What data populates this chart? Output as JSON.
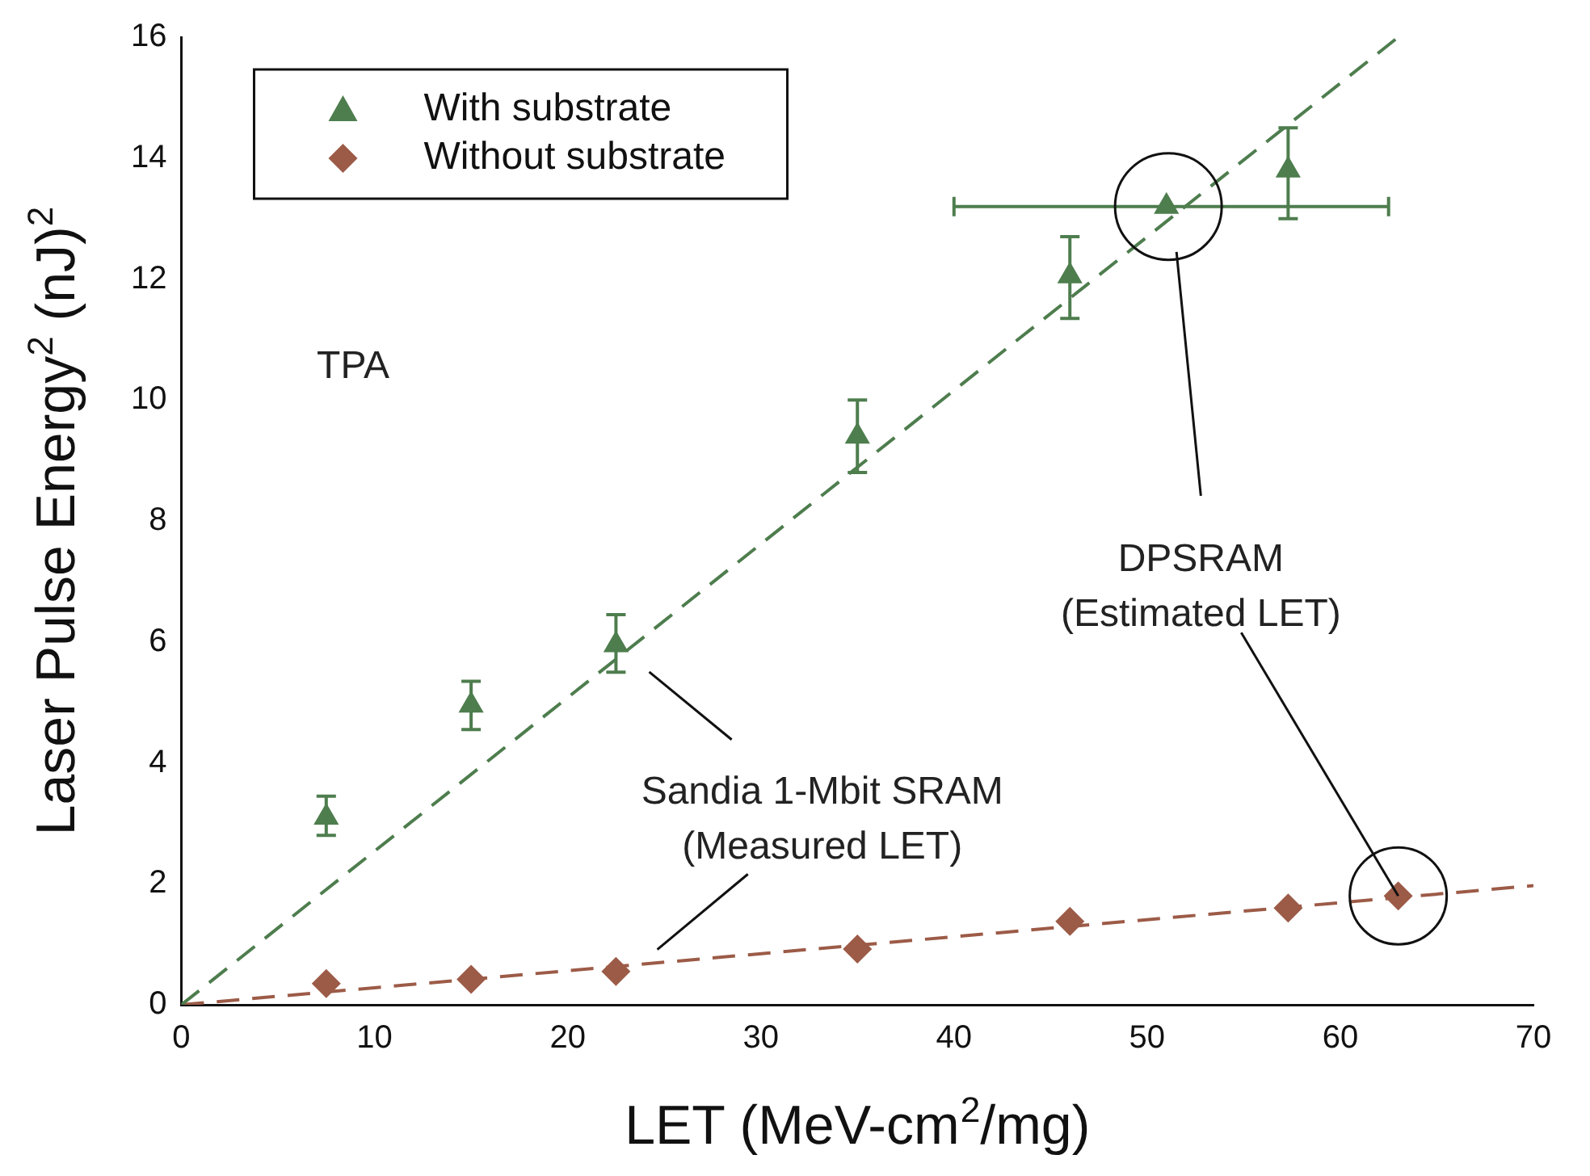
{
  "chart_data": {
    "type": "scatter",
    "xlabel": "LET (MeV-cm$^{2}$/mg)",
    "ylabel": "Laser Pulse Energy$^{2}$ (nJ)$^{2}$",
    "xlim": [
      0,
      70
    ],
    "xticks": [
      0,
      10,
      20,
      30,
      40,
      50,
      60,
      70
    ],
    "ylim": [
      0,
      16
    ],
    "yticks": [
      0,
      2,
      4,
      6,
      8,
      10,
      12,
      14,
      16
    ],
    "legend": "top left",
    "marker": "triangle",
    "series": [
      {
        "name": "With substrate",
        "color": "#4e7d4e",
        "x": [
          7.5,
          15,
          22.5,
          35,
          46,
          51,
          57.3
        ],
        "values": [
          3.1,
          4.95,
          5.95,
          9.4,
          12.05,
          13.2,
          13.8
        ],
        "errors": [
          [
            2.8,
            3.45
          ],
          [
            4.55,
            5.35
          ],
          [
            5.5,
            6.45
          ],
          [
            8.8,
            10
          ],
          [
            11.35,
            12.7
          ],
          null,
          [
            13.0,
            14.5
          ]
        ],
        "xerrors": [
          null,
          null,
          null,
          null,
          null,
          [
            40,
            62.5
          ],
          null
        ]
      },
      {
        "name": "Without substrate",
        "color": "#9c5b47",
        "marker": "diamond",
        "x": [
          7.5,
          15,
          22.5,
          35,
          46,
          57.3,
          63
        ],
        "values": [
          0.35,
          0.42,
          0.55,
          0.92,
          1.38,
          1.6,
          1.8
        ]
      },
      {
        "type": "line",
        "color": "#4e7d4e",
        "line_style": "dashed",
        "marker": "none",
        "x": [
          0,
          63
        ],
        "values": [
          0,
          16
        ]
      },
      {
        "type": "line",
        "color": "#9c5b47",
        "line_style": "dashed",
        "marker": "none",
        "x": [
          0,
          70
        ],
        "values": [
          0,
          1.97
        ]
      }
    ],
    "annotations": [
      "TPA",
      "Sandia 1-Mbit SRAM\n(Measured LET)",
      {
        "text": "DPSRAM\n(Estimated LET)",
        "x": 63,
        "y": 1.8
      }
    ]
  }
}
